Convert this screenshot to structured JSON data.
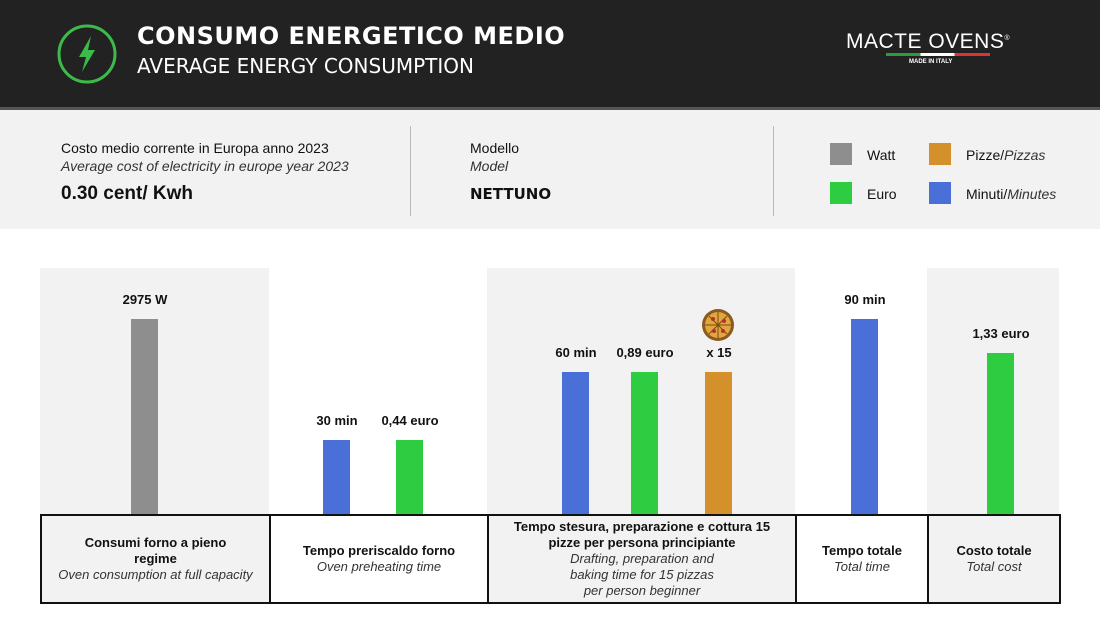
{
  "header": {
    "title": "CONSUMO ENERGETICO MEDIO",
    "subtitle": "AVERAGE ENERGY CONSUMPTION",
    "icon": "lightning-bolt-icon",
    "brand": "MACTE OVENS",
    "registered": "®",
    "tagline": "MADE IN ITALY"
  },
  "info": {
    "cost_label_it": "Costo medio corrente in Europa anno 2023",
    "cost_label_en": "Average cost of electricity in europe year 2023",
    "cost_value": "0.30 cent/ Kwh",
    "model_label_it": "Modello",
    "model_label_en": "Model",
    "model_value": "NETTUNO"
  },
  "legend": [
    {
      "label": "Watt",
      "label_en": "",
      "color": "#8e8e8e"
    },
    {
      "label": "Pizze/",
      "label_en": "Pizzas",
      "color": "#d4902a"
    },
    {
      "label": "Euro",
      "label_en": "",
      "color": "#2ecc40"
    },
    {
      "label": "Minuti/",
      "label_en": "Minutes",
      "color": "#4a6fd6"
    }
  ],
  "chart_data": {
    "type": "bar",
    "groups": [
      {
        "label_it": "Consumi forno a pieno regime",
        "label_en": "Oven consumption at full capacity",
        "bars": [
          {
            "series": "Watt",
            "value": 2975,
            "label": "2975 W",
            "color": "#8e8e8e"
          }
        ]
      },
      {
        "label_it": "Tempo preriscaldo forno",
        "label_en": "Oven preheating time",
        "bars": [
          {
            "series": "Minuti",
            "value": 30,
            "label": "30 min",
            "color": "#4a6fd6"
          },
          {
            "series": "Euro",
            "value": 0.44,
            "label": "0,44 euro",
            "color": "#2ecc40"
          }
        ]
      },
      {
        "label_it": "Tempo stesura, preparazione e cottura 15 pizze per persona principiante",
        "label_en": "Drafting, preparation and baking time for 15 pizzas per person beginner",
        "bars": [
          {
            "series": "Minuti",
            "value": 60,
            "label": "60 min",
            "color": "#4a6fd6"
          },
          {
            "series": "Euro",
            "value": 0.89,
            "label": "0,89 euro",
            "color": "#2ecc40"
          },
          {
            "series": "Pizze",
            "value": 15,
            "label": "x 15",
            "color": "#d4902a",
            "icon": "pizza-icon"
          }
        ]
      },
      {
        "label_it": "Tempo totale",
        "label_en": "Total time",
        "bars": [
          {
            "series": "Minuti",
            "value": 90,
            "label": "90 min",
            "color": "#4a6fd6"
          }
        ]
      },
      {
        "label_it": "Costo totale",
        "label_en": "Total cost",
        "bars": [
          {
            "series": "Euro",
            "value": 1.33,
            "label": "1,33 euro",
            "color": "#2ecc40"
          }
        ]
      }
    ]
  }
}
